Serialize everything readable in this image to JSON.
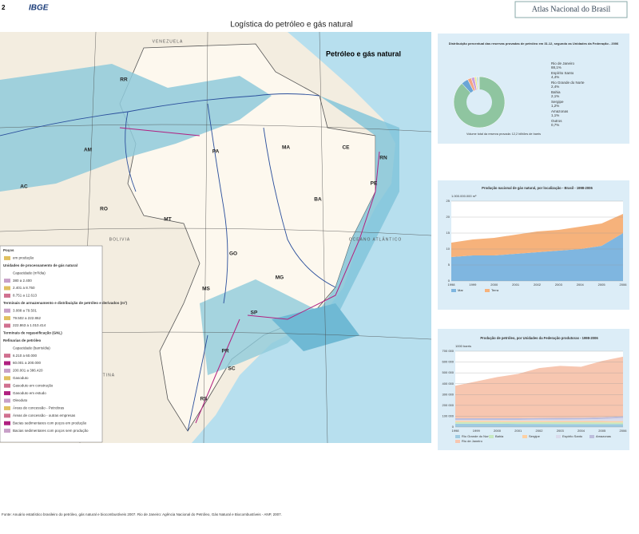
{
  "header": {
    "page": "2",
    "logo": "IBGE",
    "atlas": "Atlas Nacional do Brasil"
  },
  "title": "Logística do petróleo e gás natural",
  "map": {
    "title": "Petróleo e gás natural",
    "labels": [
      "VENEZUELA",
      "RR",
      "AM",
      "AC",
      "RO",
      "PA",
      "MA",
      "CE",
      "RN",
      "PE",
      "BA",
      "MT",
      "GO",
      "MS",
      "MG",
      "SP",
      "PR",
      "SC",
      "RS",
      "BOLIVIA",
      "ARGENTINA",
      "OCEANO ATLÂNTICO"
    ]
  },
  "legend": {
    "items": [
      "Poços",
      "em produção",
      "Unidades de processamento de gás natural",
      "Capacidade (m³/dia)",
      "380 a 2.400",
      "2.401 a 8.750",
      "8.751 a 12.613",
      "Terminais de armazenamento e distribuição de petróleo e derivados (m³)",
      "3.088 a 79.501",
      "79.502 a 222.862",
      "222.863 a 1.010.414",
      "Terminais de regaseificação (GNL)",
      "Refinarias de petróleo",
      "Capacidade (barris/dia)",
      "6.210 a 60.000",
      "60.001 a 200.000",
      "200.001 a 386.420",
      "Gasoduto",
      "Gasoduto em construção",
      "Gasoduto em estudo",
      "Oleoduto",
      "Áreas de concessão - Petrobras",
      "Áreas de concessão - outras empresas",
      "Bacias sedimentares com poços em produção",
      "Bacias sedimentares com poços sem produção"
    ]
  },
  "chart_data": [
    {
      "type": "pie",
      "title": "Distribuição percentual das reservas provadas de petróleo em 31.12, segundo as Unidades da Federação - 2006",
      "note": "Volume total da reserva provada: 12,2 bilhões de barris",
      "categories": [
        "Rio de Janeiro",
        "Espírito Santo",
        "Rio Grande do Norte",
        "Bahia",
        "Sergipe",
        "Amazonas",
        "Outros"
      ],
      "values": [
        88.1,
        4.4,
        2.4,
        2.1,
        1.2,
        1.1,
        0.7
      ],
      "value_labels": [
        "88,1%",
        "4,4%",
        "2,4%",
        "2,1%",
        "1,2%",
        "1,1%",
        "0,7%"
      ],
      "colors": [
        "#8fc5a0",
        "#6aa5d6",
        "#f4a582",
        "#c9a0dc",
        "#e9e98a",
        "#b0d8e8",
        "#d9d9d9"
      ]
    },
    {
      "type": "area",
      "title": "Produção nacional de gás natural, por localização - Brasil - 1998-2006",
      "y_label": "1.000.000.000 m³",
      "categories": [
        "1998",
        "1999",
        "2000",
        "2001",
        "2002",
        "2003",
        "2004",
        "2005",
        "2006"
      ],
      "series": [
        {
          "name": "Mar",
          "color": "#7fb6e0",
          "values": [
            7.5,
            8,
            8,
            8.5,
            9,
            9.5,
            10,
            11,
            15
          ]
        },
        {
          "name": "Terra",
          "color": "#f6b27b",
          "values": [
            4.5,
            5,
            5.5,
            6,
            6.5,
            6.5,
            7,
            7,
            6
          ]
        }
      ],
      "ylim": [
        0,
        25
      ],
      "yticks": [
        0,
        5,
        10,
        15,
        20,
        25
      ]
    },
    {
      "type": "area",
      "title": "Produção de petróleo, por Unidades da Federação produtoras - 1998-2006",
      "y_label": "1000 barris",
      "categories": [
        "1998",
        "1999",
        "2000",
        "2001",
        "2002",
        "2003",
        "2004",
        "2005",
        "2006"
      ],
      "series": [
        {
          "name": "Rio Grande do Norte",
          "color": "#9ecae1",
          "values": [
            30000,
            30000,
            30000,
            29000,
            29000,
            28000,
            28000,
            27000,
            26000
          ]
        },
        {
          "name": "Bahia",
          "color": "#c7e9c0",
          "values": [
            16000,
            16000,
            16000,
            16000,
            16000,
            16000,
            16000,
            16000,
            16000
          ]
        },
        {
          "name": "Sergipe",
          "color": "#fdd0a2",
          "values": [
            12000,
            12000,
            12000,
            12000,
            12000,
            12000,
            12000,
            12000,
            12000
          ]
        },
        {
          "name": "Espírito Santo",
          "color": "#dadaeb",
          "values": [
            8000,
            8000,
            8000,
            9000,
            12000,
            14000,
            15000,
            20000,
            30000
          ]
        },
        {
          "name": "Amazonas",
          "color": "#bcbddc",
          "values": [
            15000,
            15000,
            15000,
            15000,
            15000,
            15000,
            15000,
            15000,
            15000
          ]
        },
        {
          "name": "Rio de Janeiro",
          "color": "#f7c6b0",
          "values": [
            300000,
            340000,
            380000,
            410000,
            460000,
            480000,
            470000,
            520000,
            550000
          ]
        }
      ],
      "ylim": [
        0,
        700000
      ],
      "yticks": [
        0,
        {
          "value": 100000,
          "label": "100 000"
        },
        {
          "value": 200000,
          "label": "200 000"
        },
        {
          "value": 300000,
          "label": "300 000"
        },
        {
          "value": 400000,
          "label": "400 000"
        },
        {
          "value": 500000,
          "label": "500 000"
        },
        {
          "value": 600000,
          "label": "600 000"
        },
        {
          "value": 700000,
          "label": "700 000"
        }
      ]
    }
  ],
  "footer": "Fonte: Anuário estatístico brasileiro do petróleo, gás natural e biocombustíveis 2007. Rio de Janeiro: Agência Nacional do Petróleo, Gás Natural e Biocombustíveis - ANP, 2007."
}
